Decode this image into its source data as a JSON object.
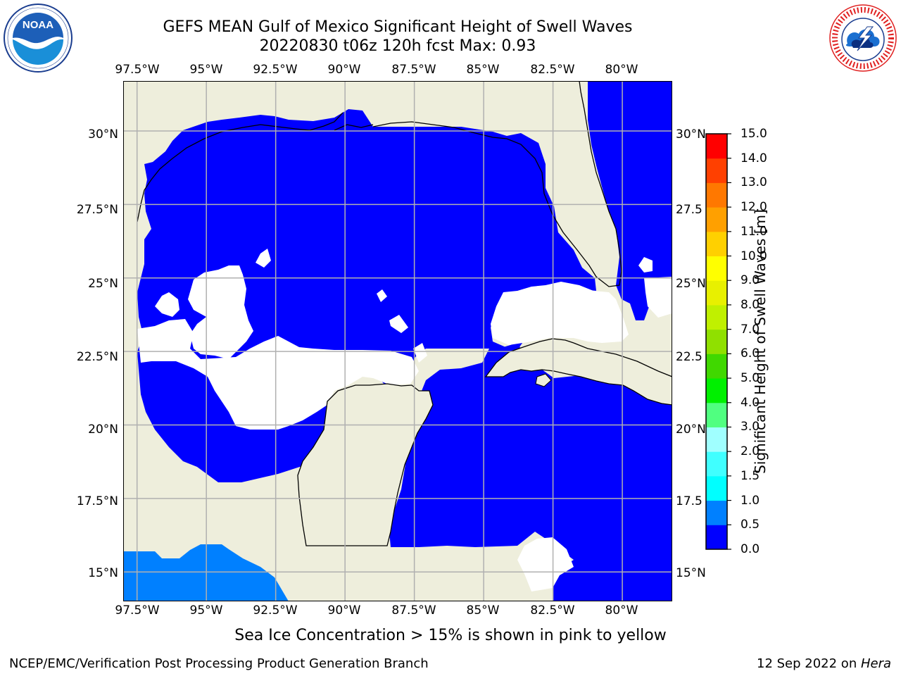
{
  "title": {
    "line1": "GEFS MEAN Gulf of Mexico Significant Height of Swell Waves",
    "line2": "20220830 t06z 120h fcst   Max: 0.93"
  },
  "map": {
    "lon_labels": [
      "97.5°W",
      "95°W",
      "92.5°W",
      "90°W",
      "87.5°W",
      "85°W",
      "82.5°W",
      "80°W"
    ],
    "lat_labels_left": [
      "30°N",
      "27.5°N",
      "25°N",
      "22.5°N",
      "20°N",
      "17.5°N",
      "15°N"
    ],
    "lat_labels_right": [
      "30°N",
      "27.5",
      "25°N",
      "22.5",
      "20°N",
      "17.5",
      "15°N"
    ],
    "extent": {
      "lon_min": -98.0,
      "lon_max": -78.2,
      "lat_min": 14.0,
      "lat_max": 31.7
    },
    "colors": {
      "land": "#eeeedc",
      "ocean_swell_0_0.5": "#0000ff",
      "ocean_swell_0.5_1.0": "#0080ff",
      "no_data": "#ffffff",
      "grid": "#b0b0b0"
    }
  },
  "colorbar": {
    "title": "Significant Height of Swell Waves [m]",
    "ticks": [
      "15.0",
      "14.0",
      "13.0",
      "12.0",
      "11.0",
      "10.0",
      "9.0",
      "8.0",
      "7.0",
      "6.0",
      "5.0",
      "4.0",
      "3.0",
      "2.0",
      "1.5",
      "1.0",
      "0.5",
      "0.0"
    ],
    "levels": [
      0.0,
      0.5,
      1.0,
      1.5,
      2.0,
      3.0,
      4.0,
      5.0,
      6.0,
      7.0,
      8.0,
      9.0,
      10.0,
      11.0,
      12.0,
      13.0,
      14.0,
      15.0
    ],
    "colors": [
      "#0000ff",
      "#0080ff",
      "#00ffff",
      "#40ffff",
      "#a0ffff",
      "#50ff80",
      "#00f000",
      "#40d800",
      "#90e000",
      "#c0f000",
      "#e8f000",
      "#ffff00",
      "#ffd000",
      "#ffa000",
      "#ff7800",
      "#ff4000",
      "#ff0000"
    ]
  },
  "footer": {
    "note": "Sea Ice Concentration > 15% is shown in pink to yellow",
    "left": "NCEP/EMC/Verification Post Processing Product Generation Branch",
    "right_date": "12 Sep 2022 on ",
    "right_host": "Hera"
  },
  "logos": {
    "noaa_text": "NOAA",
    "noaa_ring": "NATIONAL OCEANIC AND ATMOSPHERIC ADMINISTRATION · U.S. DEPARTMENT OF COMMERCE",
    "nws_ring": "NATIONAL WEATHER SERVICE"
  }
}
